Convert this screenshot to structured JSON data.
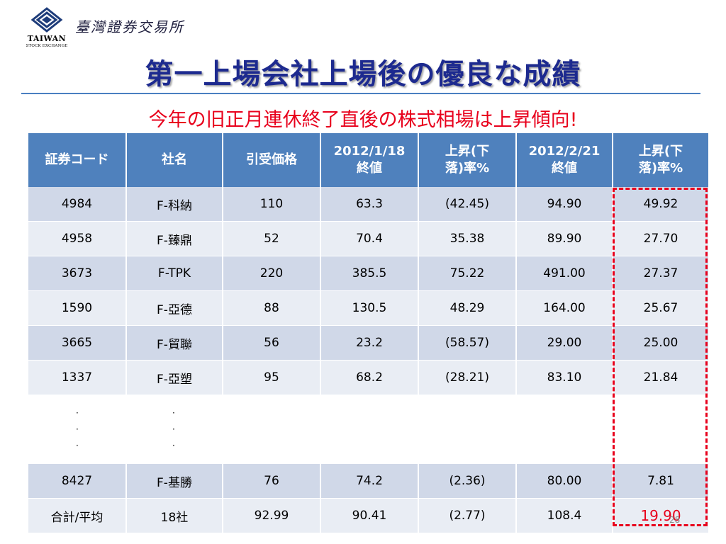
{
  "header": {
    "logo_en": "TAIWAN",
    "logo_en_sub": "STOCK EXCHANGE",
    "org_name": "臺灣證券交易所"
  },
  "title": "第一上場会社上場後の優良な成績",
  "subtitle": "今年の旧正月連休終了直後の株式相場は上昇傾向!",
  "table": {
    "headers": [
      "証券コード",
      "社名",
      "引受価格",
      "2012/1/18\n終値",
      "上昇(下\n落)率%",
      "2012/2/21\n終値",
      "上昇(下\n落)率%"
    ],
    "rows": [
      [
        "4984",
        "F-科納",
        "110",
        "63.3",
        "(42.45)",
        "94.90",
        "49.92"
      ],
      [
        "4958",
        "F-臻鼎",
        "52",
        "70.4",
        "35.38",
        "89.90",
        "27.70"
      ],
      [
        "3673",
        "F-TPK",
        "220",
        "385.5",
        "75.22",
        "491.00",
        "27.37"
      ],
      [
        "1590",
        "F-亞德",
        "88",
        "130.5",
        "48.29",
        "164.00",
        "25.67"
      ],
      [
        "3665",
        "F-貿聯",
        "56",
        "23.2",
        "(58.57)",
        "29.00",
        "25.00"
      ],
      [
        "1337",
        "F-亞塑",
        "95",
        "68.2",
        "(28.21)",
        "83.10",
        "21.84"
      ]
    ],
    "ellipsis": [
      "·",
      "·",
      "·"
    ],
    "last_row": [
      "8427",
      "F-基勝",
      "76",
      "74.2",
      "(2.36)",
      "80.00",
      "7.81"
    ],
    "total_row": [
      "合計/平均",
      "18社",
      "92.99",
      "90.41",
      "(2.77)",
      "108.4",
      "19.90"
    ]
  },
  "page_number": "28",
  "colors": {
    "header_bg": "#4f81bd",
    "row_odd": "#d0d8e8",
    "row_even": "#e9edf4",
    "title": "#1d2a8f",
    "accent_red": "#e8001c"
  }
}
